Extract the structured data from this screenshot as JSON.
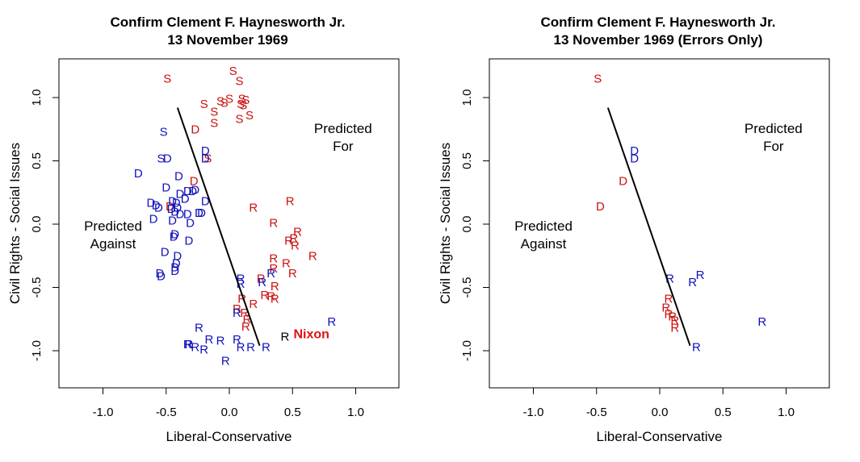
{
  "colors": {
    "red": "#cc1111",
    "blue": "#1111bb",
    "black": "#000000",
    "nixon": "#dd1111"
  },
  "chart_data": [
    {
      "type": "scatter",
      "title": "Confirm Clement F. Haynesworth Jr.",
      "subtitle": "13 November 1969",
      "xlabel": "Liberal-Conservative",
      "ylabel": "Civil Rights - Social Issues",
      "xlim": [
        -1.35,
        1.34
      ],
      "ylim": [
        -1.29,
        1.31
      ],
      "xticks": [
        -1.0,
        -0.5,
        0.0,
        0.5,
        1.0
      ],
      "xtick_labels": [
        "-1.0",
        "-0.5",
        "0.0",
        "0.5",
        "1.0"
      ],
      "yticks": [
        -1.0,
        -0.5,
        0.0,
        0.5,
        1.0
      ],
      "ytick_labels": [
        "-1.0",
        "-0.5",
        "0.0",
        "0.5",
        "1.0"
      ],
      "grid": false,
      "annotations": [
        {
          "lines": [
            "Predicted",
            "For"
          ],
          "x": 0.9,
          "y": 0.72
        },
        {
          "lines": [
            "Predicted",
            "Against"
          ],
          "x": -0.92,
          "y": -0.05
        },
        {
          "lines": [
            "Nixon"
          ],
          "x": 0.65,
          "y": -0.9,
          "color": "nixon",
          "bold": true
        }
      ],
      "cutting_line": {
        "x": [
          -0.41,
          0.24
        ],
        "y": [
          0.92,
          -0.96
        ]
      },
      "series": [
        {
          "name": "Southern Democrat voting No",
          "symbol": "S",
          "color": "red",
          "points": [
            [
              -0.49,
              1.15
            ],
            [
              0.03,
              1.21
            ],
            [
              0.08,
              1.13
            ],
            [
              -0.2,
              0.95
            ],
            [
              -0.12,
              0.89
            ],
            [
              -0.12,
              0.8
            ],
            [
              -0.04,
              0.96
            ],
            [
              0.0,
              0.99
            ],
            [
              0.09,
              0.95
            ],
            [
              0.13,
              0.98
            ],
            [
              0.1,
              0.99
            ],
            [
              0.08,
              0.83
            ],
            [
              0.16,
              0.86
            ],
            [
              -0.17,
              0.52
            ],
            [
              -0.07,
              0.97
            ],
            [
              0.11,
              0.94
            ]
          ]
        },
        {
          "name": "Southern Democrat voting Yes",
          "symbol": "S",
          "color": "blue",
          "points": [
            [
              -0.52,
              0.73
            ],
            [
              -0.54,
              0.52
            ]
          ]
        },
        {
          "name": "Democrat voting No",
          "symbol": "D",
          "color": "red",
          "points": [
            [
              -0.27,
              0.75
            ],
            [
              -0.28,
              0.34
            ],
            [
              -0.47,
              0.14
            ]
          ]
        },
        {
          "name": "Democrat voting Yes",
          "symbol": "D",
          "color": "blue",
          "points": [
            [
              -0.72,
              0.4
            ],
            [
              -0.5,
              0.29
            ],
            [
              -0.4,
              0.38
            ],
            [
              -0.33,
              0.26
            ],
            [
              -0.39,
              0.24
            ],
            [
              -0.29,
              0.26
            ],
            [
              -0.35,
              0.2
            ],
            [
              -0.27,
              0.27
            ],
            [
              -0.19,
              0.18
            ],
            [
              -0.62,
              0.17
            ],
            [
              -0.58,
              0.15
            ],
            [
              -0.56,
              0.13
            ],
            [
              -0.45,
              0.18
            ],
            [
              -0.42,
              0.17
            ],
            [
              -0.46,
              0.12
            ],
            [
              -0.41,
              0.13
            ],
            [
              -0.43,
              0.1
            ],
            [
              -0.39,
              0.08
            ],
            [
              -0.33,
              0.08
            ],
            [
              -0.24,
              0.09
            ],
            [
              -0.22,
              0.09
            ],
            [
              -0.31,
              0.01
            ],
            [
              -0.45,
              0.03
            ],
            [
              -0.6,
              0.04
            ],
            [
              -0.43,
              -0.08
            ],
            [
              -0.44,
              -0.1
            ],
            [
              -0.32,
              -0.13
            ],
            [
              -0.51,
              -0.22
            ],
            [
              -0.41,
              -0.25
            ],
            [
              -0.42,
              -0.31
            ],
            [
              -0.43,
              -0.37
            ],
            [
              -0.55,
              -0.39
            ],
            [
              -0.54,
              -0.41
            ],
            [
              -0.43,
              -0.34
            ],
            [
              -0.19,
              0.52
            ],
            [
              -0.19,
              0.58
            ],
            [
              -0.49,
              0.52
            ]
          ]
        },
        {
          "name": "Republican voting No",
          "symbol": "R",
          "color": "red",
          "points": [
            [
              0.48,
              0.18
            ],
            [
              0.19,
              0.13
            ],
            [
              0.35,
              0.01
            ],
            [
              0.51,
              -0.11
            ],
            [
              0.54,
              -0.06
            ],
            [
              0.52,
              -0.17
            ],
            [
              0.47,
              -0.13
            ],
            [
              0.66,
              -0.25
            ],
            [
              0.35,
              -0.27
            ],
            [
              0.35,
              -0.35
            ],
            [
              0.45,
              -0.31
            ],
            [
              0.5,
              -0.39
            ],
            [
              0.25,
              -0.43
            ],
            [
              0.36,
              -0.49
            ],
            [
              0.33,
              -0.57
            ],
            [
              0.36,
              -0.59
            ],
            [
              0.28,
              -0.56
            ],
            [
              0.1,
              -0.59
            ],
            [
              0.06,
              -0.67
            ],
            [
              0.12,
              -0.7
            ],
            [
              0.14,
              -0.75
            ],
            [
              0.13,
              -0.81
            ],
            [
              0.19,
              -0.63
            ]
          ]
        },
        {
          "name": "Republican voting Yes",
          "symbol": "R",
          "color": "blue",
          "points": [
            [
              0.09,
              -0.43
            ],
            [
              0.09,
              -0.47
            ],
            [
              0.26,
              -0.46
            ],
            [
              0.33,
              -0.39
            ],
            [
              0.81,
              -0.77
            ],
            [
              -0.24,
              -0.82
            ],
            [
              -0.16,
              -0.91
            ],
            [
              -0.33,
              -0.95
            ],
            [
              -0.27,
              -0.97
            ],
            [
              -0.2,
              -0.99
            ],
            [
              -0.07,
              -0.92
            ],
            [
              0.06,
              -0.91
            ],
            [
              0.09,
              -0.97
            ],
            [
              0.17,
              -0.97
            ],
            [
              0.29,
              -0.97
            ],
            [
              -0.03,
              -1.08
            ],
            [
              0.06,
              -0.7
            ],
            [
              -0.32,
              -0.95
            ]
          ]
        },
        {
          "name": "President (Nixon)",
          "symbol": "R",
          "color": "black",
          "points": [
            [
              0.44,
              -0.89
            ]
          ]
        }
      ]
    },
    {
      "type": "scatter",
      "title": "Confirm Clement F. Haynesworth Jr.",
      "subtitle": "13 November 1969 (Errors Only)",
      "xlabel": "Liberal-Conservative",
      "ylabel": "Civil Rights - Social Issues",
      "xlim": [
        -1.35,
        1.34
      ],
      "ylim": [
        -1.29,
        1.31
      ],
      "xticks": [
        -1.0,
        -0.5,
        0.0,
        0.5,
        1.0
      ],
      "xtick_labels": [
        "-1.0",
        "-0.5",
        "0.0",
        "0.5",
        "1.0"
      ],
      "yticks": [
        -1.0,
        -0.5,
        0.0,
        0.5,
        1.0
      ],
      "ytick_labels": [
        "-1.0",
        "-0.5",
        "0.0",
        "0.5",
        "1.0"
      ],
      "grid": false,
      "annotations": [
        {
          "lines": [
            "Predicted",
            "For"
          ],
          "x": 0.9,
          "y": 0.72
        },
        {
          "lines": [
            "Predicted",
            "Against"
          ],
          "x": -0.92,
          "y": -0.05
        }
      ],
      "cutting_line": {
        "x": [
          -0.41,
          0.24
        ],
        "y": [
          0.92,
          -0.96
        ]
      },
      "series": [
        {
          "name": "Southern Democrat voting No",
          "symbol": "S",
          "color": "red",
          "points": [
            [
              -0.49,
              1.15
            ]
          ]
        },
        {
          "name": "Democrat voting Yes",
          "symbol": "D",
          "color": "blue",
          "points": [
            [
              -0.2,
              0.58
            ],
            [
              -0.2,
              0.52
            ]
          ]
        },
        {
          "name": "Democrat voting No",
          "symbol": "D",
          "color": "red",
          "points": [
            [
              -0.29,
              0.34
            ],
            [
              -0.47,
              0.14
            ]
          ]
        },
        {
          "name": "Republican voting Yes",
          "symbol": "R",
          "color": "blue",
          "points": [
            [
              0.08,
              -0.43
            ],
            [
              0.26,
              -0.46
            ],
            [
              0.32,
              -0.4
            ],
            [
              0.81,
              -0.77
            ],
            [
              0.29,
              -0.97
            ]
          ]
        },
        {
          "name": "Republican voting No",
          "symbol": "R",
          "color": "red",
          "points": [
            [
              0.07,
              -0.59
            ],
            [
              0.05,
              -0.66
            ],
            [
              0.07,
              -0.71
            ],
            [
              0.12,
              -0.76
            ],
            [
              0.12,
              -0.82
            ],
            [
              0.1,
              -0.73
            ]
          ]
        }
      ]
    }
  ]
}
